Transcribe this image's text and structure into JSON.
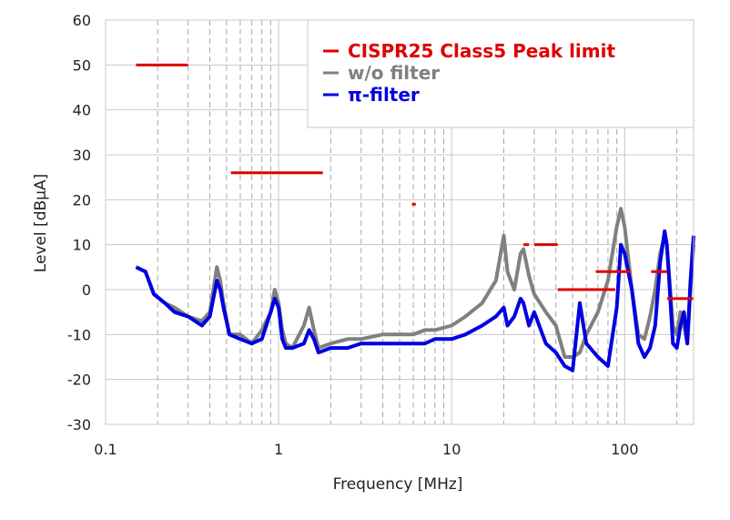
{
  "chart_data": {
    "type": "line",
    "title": "",
    "xlabel": "Frequency [MHz]",
    "ylabel": "Level [dBμA]",
    "x_scale": "log",
    "xlim": [
      0.15,
      250
    ],
    "ylim": [
      -30,
      60
    ],
    "x_ticks": [
      0.1,
      1,
      10,
      100
    ],
    "x_tick_labels": [
      "0.1",
      "1",
      "10",
      "100"
    ],
    "y_ticks": [
      -30,
      -20,
      -10,
      0,
      10,
      20,
      30,
      40,
      50,
      60
    ],
    "y_tick_labels": [
      "-30",
      "-20",
      "-10",
      "0",
      "10",
      "20",
      "30",
      "40",
      "50",
      "60"
    ],
    "grid": {
      "horizontal": "solid",
      "vertical_minor": "dashed"
    },
    "legend": {
      "position": "top-right",
      "entries": [
        {
          "label": "CISPR25 Class5 Peak limit",
          "color": "#e00000"
        },
        {
          "label": "w/o filter",
          "color": "#808080"
        },
        {
          "label": "π-filter",
          "color": "#0000e0"
        }
      ]
    },
    "limit_segments": [
      {
        "x": [
          0.15,
          0.3
        ],
        "y": 50
      },
      {
        "x": [
          0.53,
          1.8
        ],
        "y": 26
      },
      {
        "x": [
          5.9,
          6.2
        ],
        "y": 19
      },
      {
        "x": [
          26,
          28
        ],
        "y": 10
      },
      {
        "x": [
          30,
          41
        ],
        "y": 10
      },
      {
        "x": [
          41,
          88
        ],
        "y": 0
      },
      {
        "x": [
          68,
          108
        ],
        "y": 4
      },
      {
        "x": [
          142,
          176
        ],
        "y": 4
      },
      {
        "x": [
          176,
          250
        ],
        "y": -2
      }
    ],
    "series": [
      {
        "name": "w/o filter",
        "color": "#808080",
        "x": [
          0.15,
          0.17,
          0.19,
          0.22,
          0.25,
          0.3,
          0.36,
          0.4,
          0.44,
          0.46,
          0.48,
          0.52,
          0.6,
          0.7,
          0.8,
          0.9,
          0.95,
          1.0,
          1.05,
          1.1,
          1.2,
          1.4,
          1.5,
          1.6,
          1.7,
          2.0,
          2.5,
          3.0,
          4.0,
          5.0,
          6.0,
          7.0,
          8.0,
          10.0,
          12.0,
          15.0,
          18.0,
          20.0,
          21.0,
          23.0,
          25.0,
          26.0,
          28.0,
          30.0,
          35.0,
          40.0,
          45.0,
          50.0,
          55.0,
          60.0,
          70.0,
          80.0,
          90.0,
          95.0,
          100.0,
          110.0,
          120.0,
          130.0,
          140.0,
          150.0,
          160.0,
          170.0,
          175.0,
          180.0,
          190.0,
          200.0,
          210.0,
          220.0,
          230.0,
          240.0,
          250.0
        ],
        "y": [
          5,
          4,
          -1,
          -3,
          -4,
          -6,
          -7,
          -5,
          5,
          2,
          -3,
          -10,
          -10,
          -12,
          -9,
          -5,
          0,
          -3,
          -9,
          -12,
          -13,
          -8,
          -4,
          -9,
          -13,
          -12,
          -11,
          -11,
          -10,
          -10,
          -10,
          -9,
          -9,
          -8,
          -6,
          -3,
          2,
          12,
          4,
          0,
          8,
          9,
          3,
          -1,
          -5,
          -8,
          -15,
          -15,
          -14,
          -10,
          -5,
          2,
          14,
          18,
          14,
          0,
          -10,
          -11,
          -6,
          0,
          8,
          12,
          10,
          4,
          -8,
          -10,
          -5,
          -8,
          -12,
          0,
          10
        ]
      },
      {
        "name": "π-filter",
        "color": "#0000e0",
        "x": [
          0.15,
          0.17,
          0.19,
          0.22,
          0.25,
          0.3,
          0.36,
          0.4,
          0.44,
          0.46,
          0.48,
          0.52,
          0.6,
          0.7,
          0.8,
          0.9,
          0.95,
          1.0,
          1.05,
          1.1,
          1.2,
          1.4,
          1.5,
          1.6,
          1.7,
          2.0,
          2.5,
          3.0,
          4.0,
          5.0,
          6.0,
          7.0,
          8.0,
          10.0,
          12.0,
          15.0,
          18.0,
          20.0,
          21.0,
          23.0,
          25.0,
          26.0,
          28.0,
          30.0,
          35.0,
          40.0,
          45.0,
          50.0,
          55.0,
          60.0,
          70.0,
          80.0,
          90.0,
          95.0,
          100.0,
          110.0,
          120.0,
          130.0,
          140.0,
          150.0,
          160.0,
          170.0,
          175.0,
          180.0,
          190.0,
          200.0,
          210.0,
          220.0,
          230.0,
          240.0,
          250.0
        ],
        "y": [
          5,
          4,
          -1,
          -3,
          -5,
          -6,
          -8,
          -6,
          2,
          0,
          -4,
          -10,
          -11,
          -12,
          -11,
          -5,
          -2,
          -4,
          -11,
          -13,
          -13,
          -12,
          -9,
          -11,
          -14,
          -13,
          -13,
          -12,
          -12,
          -12,
          -12,
          -12,
          -11,
          -11,
          -10,
          -8,
          -6,
          -4,
          -8,
          -6,
          -2,
          -3,
          -8,
          -5,
          -12,
          -14,
          -17,
          -18,
          -3,
          -12,
          -15,
          -17,
          -4,
          10,
          8,
          0,
          -12,
          -15,
          -13,
          -8,
          6,
          13,
          10,
          3,
          -12,
          -13,
          -8,
          -5,
          -12,
          2,
          12
        ]
      }
    ]
  }
}
